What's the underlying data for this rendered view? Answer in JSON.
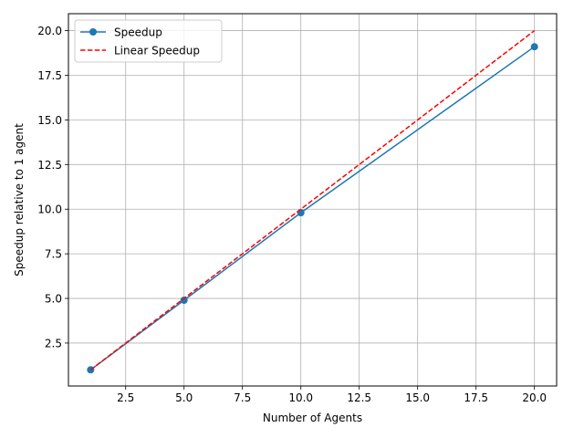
{
  "chart_data": {
    "type": "line",
    "title": "",
    "xlabel": "Number of Agents",
    "ylabel": "Speedup relative to 1 agent",
    "xlim": [
      0.05,
      20.95
    ],
    "ylim": [
      0.095,
      20.95
    ],
    "xticks": [
      2.5,
      5.0,
      7.5,
      10.0,
      12.5,
      15.0,
      17.5,
      20.0
    ],
    "xtick_labels": [
      "2.5",
      "5.0",
      "7.5",
      "10.0",
      "12.5",
      "15.0",
      "17.5",
      "20.0"
    ],
    "yticks": [
      2.5,
      5.0,
      7.5,
      10.0,
      12.5,
      15.0,
      17.5,
      20.0
    ],
    "ytick_labels": [
      "2.5",
      "5.0",
      "7.5",
      "10.0",
      "12.5",
      "15.0",
      "17.5",
      "20.0"
    ],
    "grid": true,
    "legend_position": "top-left",
    "series": [
      {
        "name": "Speedup",
        "x": [
          1,
          5,
          10,
          20
        ],
        "y": [
          1.0,
          4.9,
          9.8,
          19.1
        ],
        "color": "#1f77b4",
        "line_style": "solid",
        "marker": "circle"
      },
      {
        "name": "Linear Speedup",
        "x": [
          1,
          5,
          10,
          20
        ],
        "y": [
          1,
          5,
          10,
          20
        ],
        "color": "#ff0000",
        "line_style": "dashed",
        "marker": "none"
      }
    ]
  }
}
